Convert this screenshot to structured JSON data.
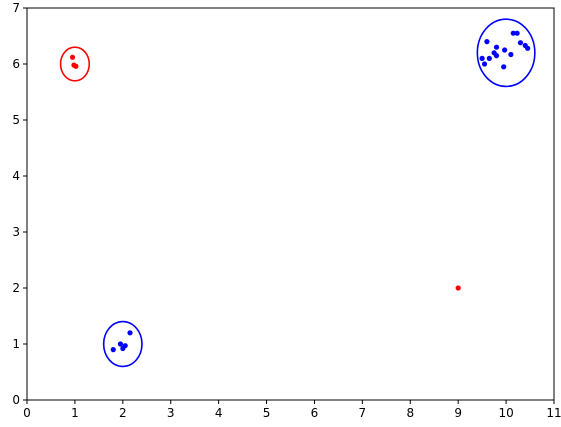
{
  "chart_data": {
    "type": "scatter",
    "title": "",
    "xlabel": "",
    "ylabel": "",
    "xlim": [
      0,
      11
    ],
    "ylim": [
      0,
      7
    ],
    "xticks": [
      0,
      1,
      2,
      3,
      4,
      5,
      6,
      7,
      8,
      9,
      10,
      11
    ],
    "yticks": [
      0,
      1,
      2,
      3,
      4,
      5,
      6,
      7
    ],
    "grid": false,
    "series": [
      {
        "color": "#0000ff",
        "points": [
          [
            9.5,
            6.1
          ],
          [
            9.55,
            6.0
          ],
          [
            9.6,
            6.4
          ],
          [
            9.65,
            6.1
          ],
          [
            9.75,
            6.2
          ],
          [
            9.8,
            6.3
          ],
          [
            9.8,
            6.15
          ],
          [
            9.95,
            5.95
          ],
          [
            9.97,
            6.25
          ],
          [
            10.1,
            6.17
          ],
          [
            10.15,
            6.55
          ],
          [
            10.23,
            6.55
          ],
          [
            10.3,
            6.38
          ],
          [
            10.4,
            6.33
          ],
          [
            10.45,
            6.28
          ],
          [
            1.8,
            0.9
          ],
          [
            1.95,
            1.0
          ],
          [
            2.0,
            0.92
          ],
          [
            2.05,
            0.97
          ],
          [
            2.15,
            1.2
          ]
        ]
      },
      {
        "color": "#ff0000",
        "points": [
          [
            0.95,
            6.12
          ],
          [
            0.98,
            5.98
          ],
          [
            1.02,
            5.96
          ],
          [
            9.0,
            2.0
          ]
        ]
      }
    ],
    "ellipses": [
      {
        "color": "#0000ff",
        "cx": 10.0,
        "cy": 6.2,
        "rx": 0.6,
        "ry": 0.6
      },
      {
        "color": "#0000ff",
        "cx": 2.0,
        "cy": 1.0,
        "rx": 0.4,
        "ry": 0.4
      },
      {
        "color": "#ff0000",
        "cx": 1.0,
        "cy": 6.0,
        "rx": 0.3,
        "ry": 0.3
      }
    ]
  }
}
